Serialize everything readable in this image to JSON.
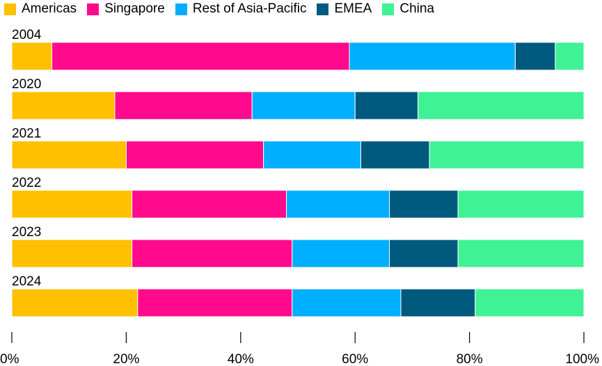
{
  "chart_data": {
    "type": "bar",
    "orientation": "horizontal",
    "stacked": true,
    "normalized": true,
    "categories": [
      "2004",
      "2020",
      "2021",
      "2022",
      "2023",
      "2024"
    ],
    "series": [
      {
        "name": "Americas",
        "color": "#FFC000",
        "values": [
          7,
          18,
          20,
          21,
          21,
          22
        ]
      },
      {
        "name": "Singapore",
        "color": "#FF0A8C",
        "values": [
          52,
          24,
          24,
          27,
          28,
          27
        ]
      },
      {
        "name": "Rest of Asia-Pacific",
        "color": "#00AEFF",
        "values": [
          29,
          18,
          17,
          18,
          17,
          19
        ]
      },
      {
        "name": "EMEA",
        "color": "#005A7E",
        "values": [
          7,
          11,
          12,
          12,
          12,
          13
        ]
      },
      {
        "name": "China",
        "color": "#3FF295",
        "values": [
          5,
          29,
          27,
          22,
          22,
          19
        ]
      }
    ],
    "xlim": [
      0,
      100
    ],
    "xticks": [
      "0%",
      "20%",
      "40%",
      "60%",
      "80%",
      "100%"
    ],
    "legend_position": "top-left",
    "grid": false
  }
}
